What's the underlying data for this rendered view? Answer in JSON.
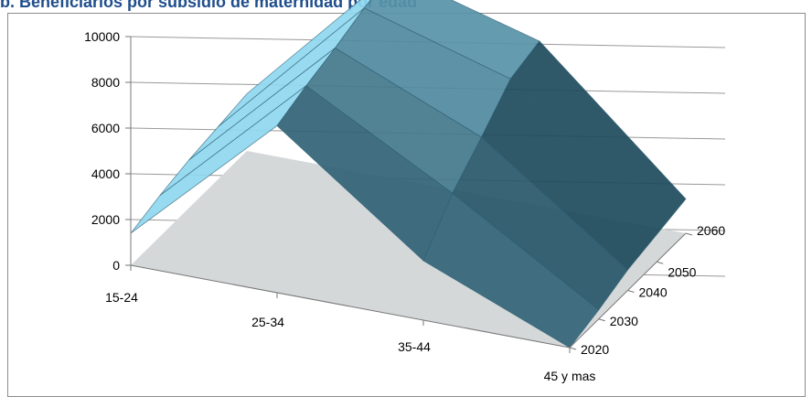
{
  "chart_data": {
    "type": "surface-3d",
    "title": "b. Beneficiarios por subsidio de maternidad por edad",
    "categories": [
      "15-24",
      "25-34",
      "35-44",
      "45 y mas"
    ],
    "series_axis": [
      "2020",
      "2030",
      "2040",
      "2050",
      "2060"
    ],
    "z_ticks": [
      "0",
      "2000",
      "4000",
      "6000",
      "8000",
      "10000"
    ],
    "zlim": [
      0,
      10000
    ],
    "series": [
      {
        "name": "2020",
        "values": [
          1400,
          7300,
          2600,
          0
        ]
      },
      {
        "name": "2030",
        "values": [
          1800,
          7800,
          4300,
          400
        ]
      },
      {
        "name": "2040",
        "values": [
          2100,
          8200,
          5500,
          900
        ]
      },
      {
        "name": "2050",
        "values": [
          2300,
          8700,
          6800,
          1200
        ]
      },
      {
        "name": "2060",
        "values": [
          2500,
          9000,
          7200,
          1500
        ]
      }
    ],
    "colors": {
      "dark": "#1d4a5c",
      "light": "#8fd8f0",
      "floor": "#d4d8d9",
      "grid": "#999999",
      "mesh": "#2e5f73"
    }
  }
}
